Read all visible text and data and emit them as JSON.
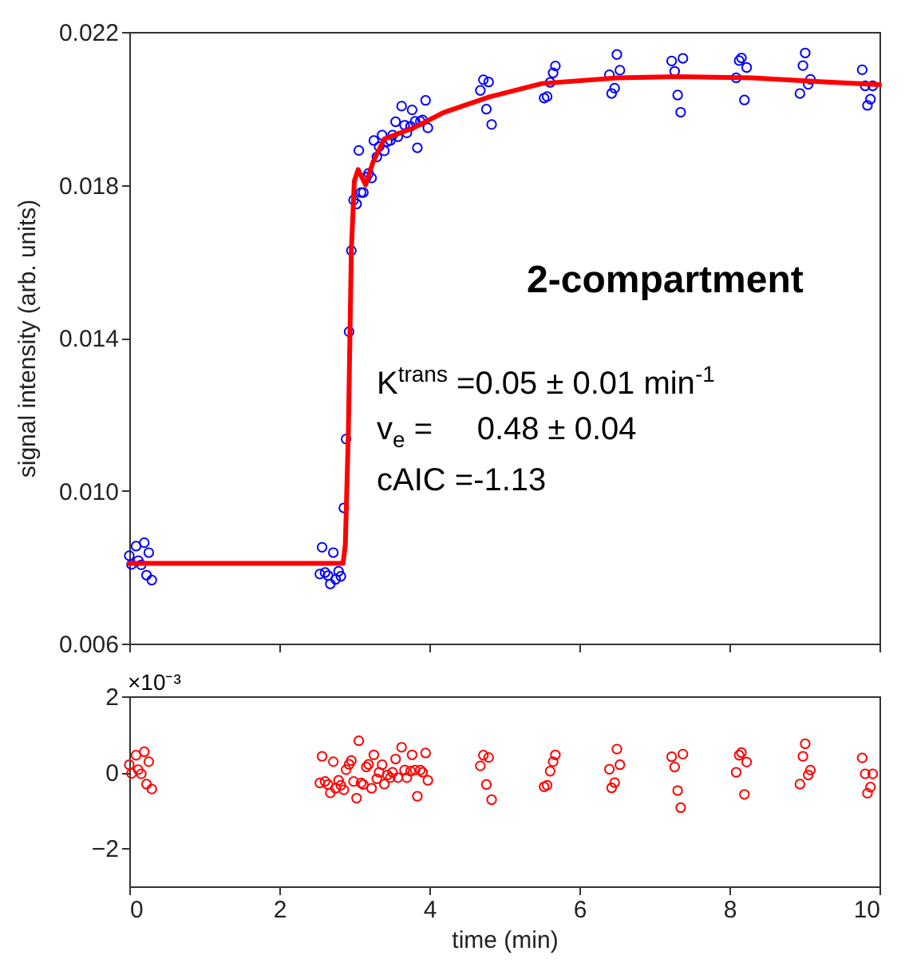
{
  "chart_data": [
    {
      "type": "scatter",
      "ylabel": "signal intensity (arb. units)",
      "xlim": [
        0,
        10
      ],
      "xticks": [
        0,
        2,
        4,
        6,
        8,
        10
      ],
      "ylim": [
        0.006,
        0.022
      ],
      "yticks": [
        0.006,
        {
          "value": 0.01,
          "label": "0.010"
        },
        0.014,
        0.018,
        0.022
      ],
      "tick_labels": "y",
      "grid": false,
      "annotations": [
        "2-compartment",
        "K$^{trans}$ =0.05 ± 0.01 min$^{-1}$",
        "v$_{e}$ =     0.48 ± 0.04",
        "cAIC =-1.13"
      ],
      "series": [
        {
          "type": "scatter",
          "color": "#0000ff",
          "marker": "circle",
          "x": [
            0,
            0.03,
            0.09,
            0.12,
            0.16,
            0.2,
            0.23,
            0.26,
            0.3,
            2.54,
            2.57,
            2.61,
            2.65,
            2.68,
            2.72,
            2.75,
            2.79,
            2.82,
            2.86,
            2.89,
            2.93,
            2.96,
            2.99,
            3.03,
            3.06,
            3.09,
            3.12,
            3.16,
            3.19,
            3.23,
            3.26,
            3.3,
            3.33,
            3.37,
            3.4,
            3.44,
            3.48,
            3.51,
            3.55,
            3.58,
            3.63,
            3.67,
            3.7,
            3.75,
            3.77,
            3.81,
            3.84,
            3.88,
            3.91,
            3.95,
            3.98,
            4.68,
            4.72,
            4.76,
            4.79,
            4.83,
            5.53,
            5.57,
            5.61,
            5.65,
            5.68,
            6.4,
            6.43,
            6.47,
            6.5,
            6.54,
            7.23,
            7.27,
            7.31,
            7.35,
            7.38,
            8.09,
            8.13,
            8.16,
            8.2,
            8.23,
            8.94,
            8.98,
            9.01,
            9.05,
            9.08,
            9.77,
            9.81,
            9.84,
            9.88,
            9.91
          ],
          "values": [
            0.0083,
            0.00807,
            0.00855,
            0.00817,
            0.00806,
            0.00864,
            0.00779,
            0.00838,
            0.00766,
            0.00782,
            0.00852,
            0.00786,
            0.00778,
            0.00756,
            0.00838,
            0.00768,
            0.00789,
            0.00776,
            0.00955,
            0.01135,
            0.01416,
            0.01628,
            0.0176,
            0.0175,
            0.0189,
            0.0178,
            0.0178,
            0.0182,
            0.0183,
            0.01818,
            0.01916,
            0.01873,
            0.019,
            0.0193,
            0.01889,
            0.01913,
            0.01916,
            0.0193,
            0.01965,
            0.01926,
            0.02006,
            0.01956,
            0.01936,
            0.01953,
            0.01996,
            0.01966,
            0.01897,
            0.01966,
            0.0197,
            0.02021,
            0.01949,
            0.02047,
            0.02075,
            0.01998,
            0.02069,
            0.01958,
            0.02027,
            0.02031,
            0.02068,
            0.02093,
            0.02111,
            0.02088,
            0.02039,
            0.02053,
            0.02141,
            0.021,
            0.02124,
            0.02097,
            0.02035,
            0.0199,
            0.02131,
            0.0208,
            0.02125,
            0.02132,
            0.02022,
            0.02107,
            0.02039,
            0.02112,
            0.02145,
            0.02063,
            0.02076,
            0.02101,
            0.02059,
            0.02008,
            0.02024,
            0.02059
          ]
        },
        {
          "type": "line",
          "color": "#ff0000",
          "x": [
            0,
            2.85,
            2.88,
            2.92,
            2.96,
            3.0,
            3.05,
            3.15,
            3.25,
            3.4,
            3.8,
            4.2,
            4.8,
            5.5,
            6.5,
            7.3,
            8.3,
            9.2,
            10
          ],
          "values": [
            0.0081,
            0.0081,
            0.0086,
            0.0115,
            0.0163,
            0.0181,
            0.0184,
            0.018,
            0.0186,
            0.0192,
            0.0195,
            0.0199,
            0.0203,
            0.02065,
            0.0208,
            0.02083,
            0.0208,
            0.0207,
            0.02062
          ]
        }
      ]
    },
    {
      "type": "scatter",
      "xlabel": "time (min)",
      "xlim": [
        0,
        10
      ],
      "xticks": [
        0,
        2,
        4,
        6,
        8,
        10
      ],
      "ylim": [
        -3,
        2
      ],
      "yticks": [
        -2,
        0,
        2
      ],
      "marker": "circle",
      "grid": false,
      "annotations": [
        "×10⁻³"
      ],
      "series": [
        {
          "type": "scatter",
          "color": "#ff0000",
          "x": [
            0,
            0.03,
            0.09,
            0.12,
            0.16,
            0.2,
            0.23,
            0.26,
            0.3,
            2.54,
            2.57,
            2.61,
            2.65,
            2.68,
            2.72,
            2.75,
            2.79,
            2.82,
            2.86,
            2.89,
            2.93,
            2.96,
            2.99,
            3.03,
            3.06,
            3.09,
            3.12,
            3.16,
            3.19,
            3.23,
            3.26,
            3.3,
            3.33,
            3.37,
            3.4,
            3.44,
            3.48,
            3.51,
            3.55,
            3.58,
            3.63,
            3.67,
            3.7,
            3.75,
            3.77,
            3.81,
            3.84,
            3.88,
            3.91,
            3.95,
            3.98,
            4.68,
            4.72,
            4.76,
            4.79,
            4.83,
            5.53,
            5.57,
            5.61,
            5.65,
            5.68,
            6.4,
            6.43,
            6.47,
            6.5,
            6.54,
            7.23,
            7.27,
            7.31,
            7.35,
            7.38,
            8.09,
            8.13,
            8.16,
            8.2,
            8.23,
            8.94,
            8.98,
            9.01,
            9.05,
            9.08,
            9.77,
            9.81,
            9.84,
            9.88,
            9.91
          ],
          "values": [
            0.2,
            -0.03,
            0.45,
            0.07,
            -0.04,
            0.54,
            -0.31,
            0.28,
            -0.44,
            -0.28,
            0.42,
            -0.24,
            -0.32,
            -0.54,
            0.28,
            -0.42,
            -0.21,
            -0.34,
            -0.46,
            0.07,
            0.21,
            0.31,
            -0.24,
            -0.68,
            0.83,
            -0.28,
            -0.32,
            0.14,
            0.21,
            -0.42,
            0.46,
            -0.17,
            0.0,
            0.2,
            -0.31,
            -0.07,
            -0.14,
            0.0,
            0.35,
            -0.14,
            0.66,
            0.06,
            -0.14,
            0.03,
            0.46,
            0.06,
            -0.63,
            0.06,
            0.0,
            0.51,
            -0.21,
            0.17,
            0.45,
            -0.32,
            0.39,
            -0.72,
            -0.38,
            -0.34,
            0.03,
            0.28,
            0.46,
            0.08,
            -0.41,
            -0.27,
            0.61,
            0.2,
            0.41,
            0.14,
            -0.48,
            -0.93,
            0.48,
            0.0,
            0.45,
            0.52,
            -0.58,
            0.27,
            -0.31,
            0.42,
            0.75,
            -0.07,
            0.06,
            0.38,
            -0.04,
            -0.55,
            -0.39,
            -0.04
          ]
        }
      ]
    }
  ]
}
